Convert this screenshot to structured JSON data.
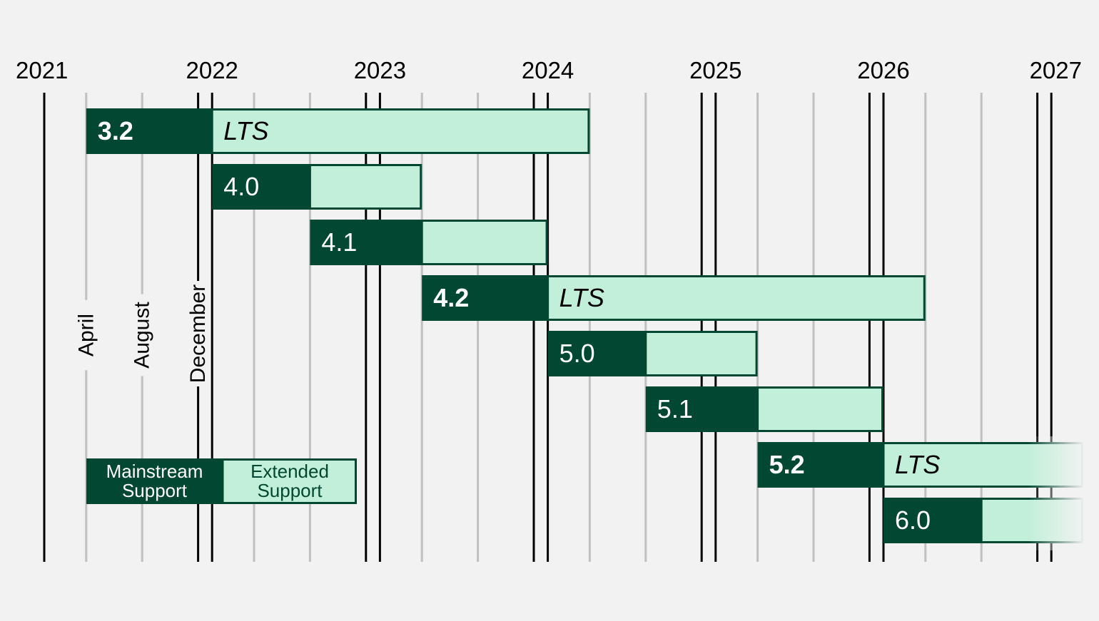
{
  "chart_data": {
    "type": "gantt",
    "title": "",
    "x_axis": {
      "unit": "date",
      "range": [
        "2021-01-01",
        "2027-03-01"
      ],
      "year_tick_labels": [
        "2021",
        "2022",
        "2023",
        "2024",
        "2025",
        "2026",
        "2027"
      ],
      "month_gridlines": [
        "April",
        "August",
        "December"
      ],
      "month_labels": [
        "April",
        "August",
        "December"
      ]
    },
    "series": [
      {
        "name": "Mainstream Support",
        "color": "#024731"
      },
      {
        "name": "Extended Support",
        "color": "#c1efd9"
      }
    ],
    "releases": [
      {
        "version": "3.2",
        "bold": true,
        "mainstream_start": "2021-04-01",
        "extended_start": "2022-01-01",
        "end": "2024-04-01",
        "extended_label": "LTS"
      },
      {
        "version": "4.0",
        "bold": false,
        "mainstream_start": "2022-01-01",
        "extended_start": "2022-08-01",
        "end": "2023-04-01",
        "extended_label": ""
      },
      {
        "version": "4.1",
        "bold": false,
        "mainstream_start": "2022-08-01",
        "extended_start": "2023-04-01",
        "end": "2024-01-01",
        "extended_label": ""
      },
      {
        "version": "4.2",
        "bold": true,
        "mainstream_start": "2023-04-01",
        "extended_start": "2024-01-01",
        "end": "2026-04-01",
        "extended_label": "LTS"
      },
      {
        "version": "5.0",
        "bold": false,
        "mainstream_start": "2024-01-01",
        "extended_start": "2024-08-01",
        "end": "2025-04-01",
        "extended_label": ""
      },
      {
        "version": "5.1",
        "bold": false,
        "mainstream_start": "2024-08-01",
        "extended_start": "2025-04-01",
        "end": "2026-01-01",
        "extended_label": ""
      },
      {
        "version": "5.2",
        "bold": true,
        "mainstream_start": "2025-04-01",
        "extended_start": "2026-01-01",
        "end": "2027-03-01",
        "extended_label": "LTS",
        "open_ended": true
      },
      {
        "version": "6.0",
        "bold": false,
        "mainstream_start": "2026-01-01",
        "extended_start": "2026-08-01",
        "end": "2027-03-01",
        "extended_label": "",
        "open_ended": true
      }
    ],
    "legend": {
      "position": "bottom-left",
      "mainstream_label_lines": [
        "Mainstream",
        "Support"
      ],
      "extended_label_lines": [
        "Extended",
        "Support"
      ]
    },
    "colors": {
      "mainstream": "#024731",
      "extended": "#c1efd9",
      "year_line": "#000000",
      "month_line": "#c0c0c0",
      "plot_bg": "#f2f2f2",
      "extended_text": "#024731",
      "mainstream_text": "#ffffff"
    },
    "grid": true
  }
}
